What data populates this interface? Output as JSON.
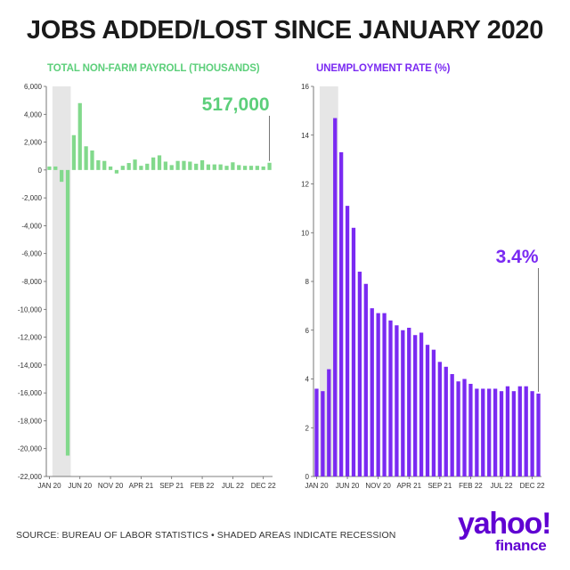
{
  "title": "JOBS ADDED/LOST SINCE JANUARY 2020",
  "source": "SOURCE: BUREAU OF LABOR STATISTICS • SHADED AREAS INDICATE RECESSION",
  "logo": {
    "main": "yahoo!",
    "sub": "finance"
  },
  "colors": {
    "payroll": "#82d98c",
    "unemployment": "#7a2af2",
    "recession": "#e6e6e6",
    "payroll_title": "#5ccf7a"
  },
  "chart_data": [
    {
      "type": "bar",
      "title": "TOTAL NON-FARM PAYROLL (THOUSANDS)",
      "xlabel": "",
      "ylabel": "",
      "ylim": [
        -22000,
        6000
      ],
      "yticks": [
        6000,
        4000,
        2000,
        0,
        -2000,
        -4000,
        -6000,
        -8000,
        -10000,
        -12000,
        -14000,
        -16000,
        -18000,
        -20000,
        -22000
      ],
      "ytick_labels": [
        "6,000",
        "4,000",
        "2,000",
        "0",
        "-2,000",
        "-4,000",
        "-6,000",
        "-8,000",
        "-10,000",
        "-12,000",
        "-14,000",
        "-16,000",
        "-18,000",
        "-20,000",
        "-22,000"
      ],
      "xtick_labels": [
        "JAN 20",
        "JUN 20",
        "NOV 20",
        "APR 21",
        "SEP 21",
        "FEB 22",
        "JUL 22",
        "DEC 22"
      ],
      "xtick_indices": [
        0,
        5,
        10,
        15,
        20,
        25,
        30,
        35
      ],
      "months": [
        "Jan 20",
        "Feb 20",
        "Mar 20",
        "Apr 20",
        "May 20",
        "Jun 20",
        "Jul 20",
        "Aug 20",
        "Sep 20",
        "Oct 20",
        "Nov 20",
        "Dec 20",
        "Jan 21",
        "Feb 21",
        "Mar 21",
        "Apr 21",
        "May 21",
        "Jun 21",
        "Jul 21",
        "Aug 21",
        "Sep 21",
        "Oct 21",
        "Nov 21",
        "Dec 21",
        "Jan 22",
        "Feb 22",
        "Mar 22",
        "Apr 22",
        "May 22",
        "Jun 22",
        "Jul 22",
        "Aug 22",
        "Sep 22",
        "Oct 22",
        "Nov 22",
        "Dec 22",
        "Jan 23"
      ],
      "values": [
        250,
        250,
        -850,
        -20500,
        2500,
        4800,
        1700,
        1400,
        700,
        650,
        250,
        -250,
        300,
        500,
        750,
        300,
        450,
        900,
        1050,
        600,
        350,
        650,
        650,
        600,
        450,
        700,
        400,
        400,
        400,
        300,
        550,
        350,
        300,
        300,
        300,
        250,
        517
      ],
      "recession": [
        "Feb 20",
        "Apr 20"
      ],
      "callout": {
        "label": "517,000",
        "month": "Jan 23"
      }
    },
    {
      "type": "bar",
      "title": "UNEMPLOYMENT RATE (%)",
      "xlabel": "",
      "ylabel": "",
      "ylim": [
        0,
        16
      ],
      "yticks": [
        0,
        2,
        4,
        6,
        8,
        10,
        12,
        14,
        16
      ],
      "ytick_labels": [
        "0",
        "2",
        "4",
        "6",
        "8",
        "10",
        "12",
        "14",
        "16"
      ],
      "xtick_labels": [
        "JAN 20",
        "JUN 20",
        "NOV 20",
        "APR 21",
        "SEP 21",
        "FEB 22",
        "JUL 22",
        "DEC 22"
      ],
      "xtick_indices": [
        0,
        5,
        10,
        15,
        20,
        25,
        30,
        35
      ],
      "months": [
        "Jan 20",
        "Feb 20",
        "Mar 20",
        "Apr 20",
        "May 20",
        "Jun 20",
        "Jul 20",
        "Aug 20",
        "Sep 20",
        "Oct 20",
        "Nov 20",
        "Dec 20",
        "Jan 21",
        "Feb 21",
        "Mar 21",
        "Apr 21",
        "May 21",
        "Jun 21",
        "Jul 21",
        "Aug 21",
        "Sep 21",
        "Oct 21",
        "Nov 21",
        "Dec 21",
        "Jan 22",
        "Feb 22",
        "Mar 22",
        "Apr 22",
        "May 22",
        "Jun 22",
        "Jul 22",
        "Aug 22",
        "Sep 22",
        "Oct 22",
        "Nov 22",
        "Dec 22",
        "Jan 23"
      ],
      "values": [
        3.6,
        3.5,
        4.4,
        14.7,
        13.3,
        11.1,
        10.2,
        8.4,
        7.9,
        6.9,
        6.7,
        6.7,
        6.4,
        6.2,
        6.0,
        6.1,
        5.8,
        5.9,
        5.4,
        5.2,
        4.7,
        4.5,
        4.2,
        3.9,
        4.0,
        3.8,
        3.6,
        3.6,
        3.6,
        3.6,
        3.5,
        3.7,
        3.5,
        3.7,
        3.7,
        3.5,
        3.4
      ],
      "recession": [
        "Feb 20",
        "Apr 20"
      ],
      "callout": {
        "label": "3.4%",
        "month": "Jan 23"
      }
    }
  ]
}
